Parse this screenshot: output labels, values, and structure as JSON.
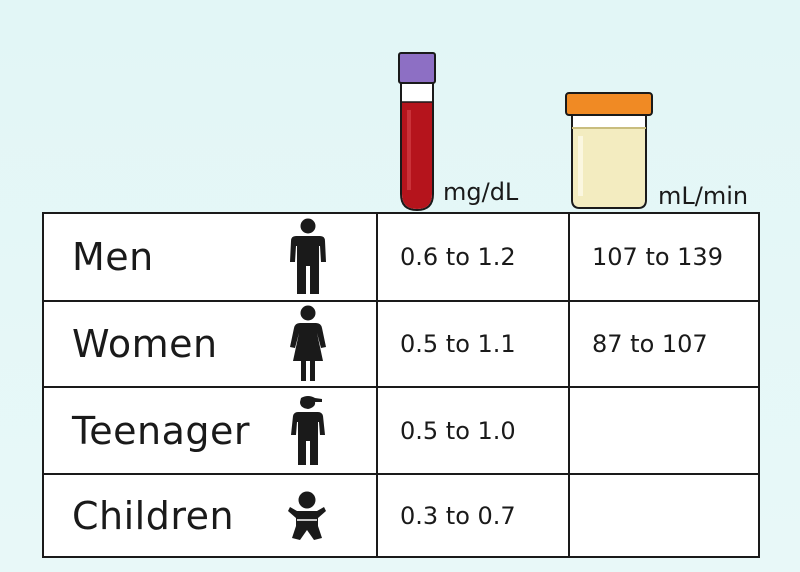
{
  "header": {
    "col1_unit": "mg/dL",
    "col2_unit": "mL/min",
    "col1_icon": "blood-tube-icon",
    "col2_icon": "urine-cup-icon"
  },
  "rows": [
    {
      "label": "Men",
      "icon": "man-icon",
      "creatinine": "0.6 to 1.2",
      "clearance": "107 to 139"
    },
    {
      "label": "Women",
      "icon": "woman-icon",
      "creatinine": "0.5 to 1.1",
      "clearance": "87 to 107"
    },
    {
      "label": "Teenager",
      "icon": "teenager-icon",
      "creatinine": "0.5 to 1.0",
      "clearance": ""
    },
    {
      "label": "Children",
      "icon": "baby-icon",
      "creatinine": "0.3 to 0.7",
      "clearance": ""
    }
  ],
  "colors": {
    "background": "#e2f6f6",
    "blood": "#b5141c",
    "tube_cap": "#8d6fc4",
    "cup_cap": "#f08a24",
    "urine": "#f3ecc0"
  }
}
